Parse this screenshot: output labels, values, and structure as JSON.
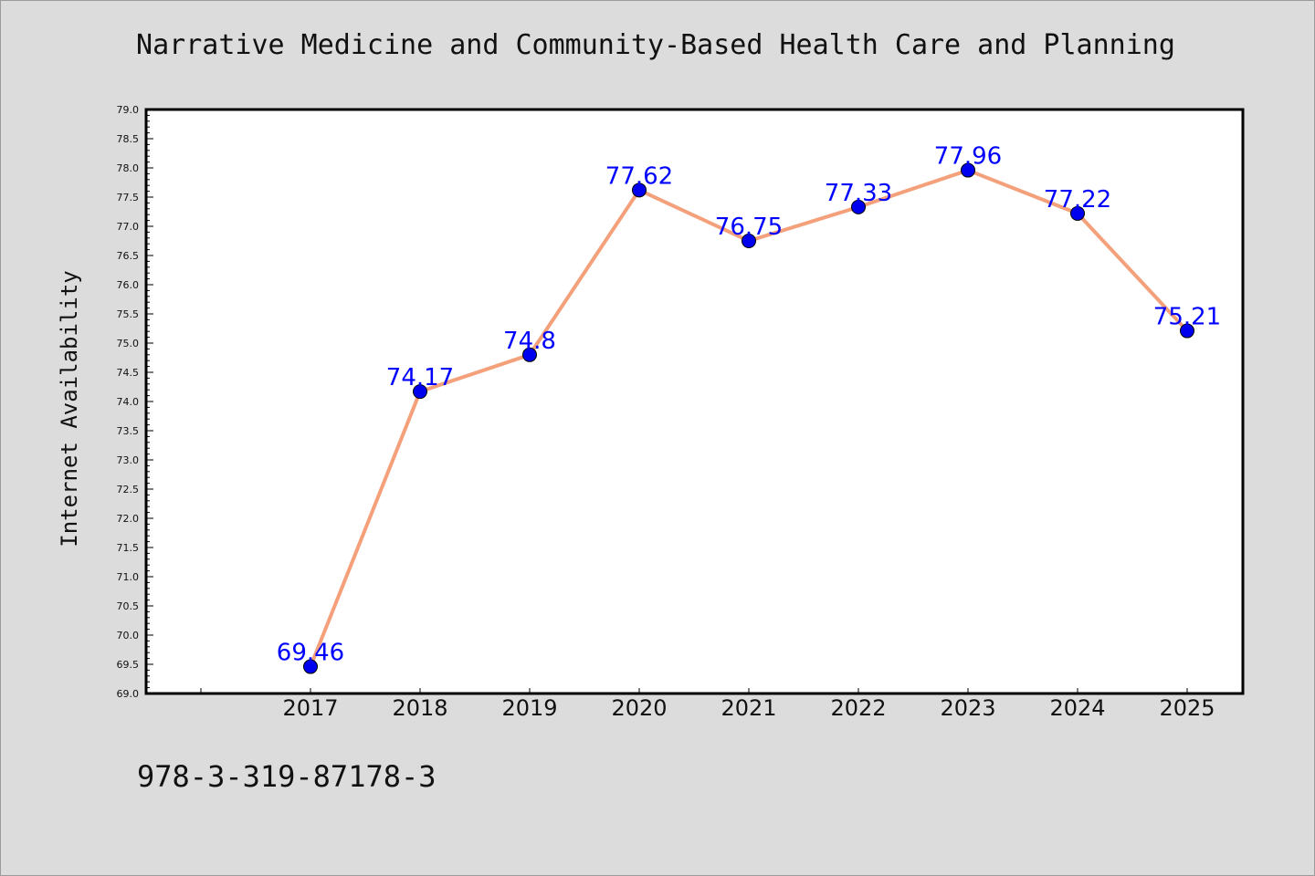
{
  "chart_data": {
    "type": "line",
    "title": "Narrative Medicine and Community-Based Health Care and Planning",
    "xlabel": "",
    "ylabel": "Internet Availability",
    "categories": [
      "2017",
      "2018",
      "2019",
      "2020",
      "2021",
      "2022",
      "2023",
      "2024",
      "2025"
    ],
    "series": [
      {
        "values": [
          69.46,
          74.17,
          74.8,
          77.62,
          76.75,
          77.33,
          77.96,
          77.22,
          75.21
        ],
        "labels": [
          "69.46",
          "74.17",
          "74.8",
          "77.62",
          "76.75",
          "77.33",
          "77.96",
          "77.22",
          "75.21"
        ]
      }
    ],
    "ylim": [
      69.0,
      79.0
    ],
    "yticks": [
      "69.0",
      "69.5",
      "70.0",
      "70.5",
      "71.0",
      "71.5",
      "72.0",
      "72.5",
      "73.0",
      "73.5",
      "74.0",
      "74.5",
      "75.0",
      "75.5",
      "76.0",
      "76.5",
      "77.0",
      "77.5",
      "78.0",
      "78.5",
      "79.0"
    ],
    "grid": false,
    "legend": "none",
    "colors": {
      "line": "#f4a07a",
      "marker": "#0000ee",
      "data_label": "#0000ff",
      "background": "#dcdcdc",
      "plot_background": "#ffffff"
    }
  },
  "footer": {
    "isbn": "978-3-319-87178-3"
  }
}
